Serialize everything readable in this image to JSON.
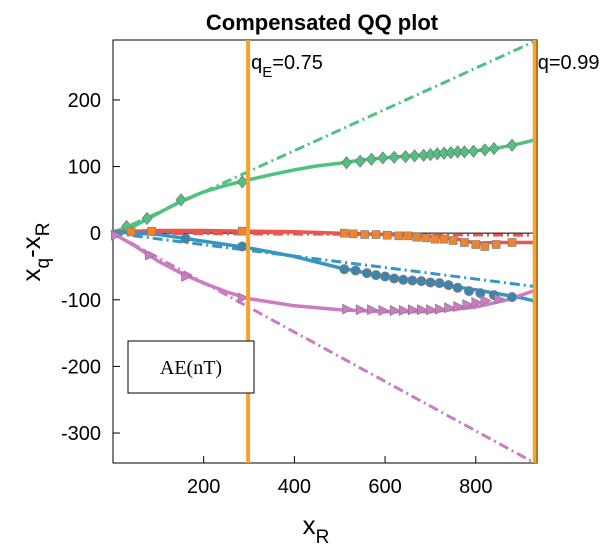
{
  "chart_data": {
    "type": "line",
    "title": "Compensated QQ plot",
    "xlabel": {
      "main": "x",
      "sub": "R"
    },
    "ylabel": {
      "a": "x",
      "a_sub": "q",
      "b": "-x",
      "b_sub": "R"
    },
    "xlim": [
      0,
      935
    ],
    "ylim": [
      -345,
      290
    ],
    "xticks": [
      200,
      400,
      600,
      800
    ],
    "yticks": [
      200,
      100,
      0,
      -100,
      -200,
      -300
    ],
    "grid": false,
    "legend_box": "AE(nT)",
    "vlines": [
      {
        "x": 298,
        "label": {
          "a": "q",
          "a_sub": "E",
          "b": "=0.75"
        }
      },
      {
        "x": 930,
        "label": {
          "a": "q=0.99",
          "a_sub": "",
          "b": ""
        }
      }
    ],
    "colors": {
      "green": "#4ec27f",
      "red": "#f0524e",
      "blue": "#3396c4",
      "purple": "#cc7bc4",
      "orange": "#f5a32c",
      "marker_blue": "#3b86b0",
      "marker_orange": "#f0842c"
    },
    "series": [
      {
        "color": "#4ec27f",
        "marker": "diamond",
        "marker_color": "#4ec27f",
        "curve": [
          [
            0,
            2
          ],
          [
            50,
            12
          ],
          [
            100,
            30
          ],
          [
            150,
            48
          ],
          [
            200,
            62
          ],
          [
            250,
            72
          ],
          [
            298,
            80
          ],
          [
            350,
            88
          ],
          [
            400,
            95
          ],
          [
            450,
            101
          ],
          [
            500,
            105
          ],
          [
            550,
            110
          ],
          [
            600,
            113
          ],
          [
            650,
            116
          ],
          [
            700,
            118
          ],
          [
            750,
            121
          ],
          [
            800,
            124
          ],
          [
            850,
            128
          ],
          [
            900,
            135
          ],
          [
            930,
            140
          ]
        ],
        "points": [
          [
            30,
            10
          ],
          [
            75,
            22
          ],
          [
            150,
            50
          ],
          [
            285,
            77
          ],
          [
            515,
            106
          ],
          [
            545,
            108
          ],
          [
            570,
            111
          ],
          [
            595,
            113
          ],
          [
            620,
            114
          ],
          [
            645,
            115
          ],
          [
            665,
            116
          ],
          [
            685,
            117
          ],
          [
            700,
            118
          ],
          [
            715,
            119
          ],
          [
            730,
            120
          ],
          [
            745,
            121
          ],
          [
            760,
            122
          ],
          [
            775,
            122
          ],
          [
            795,
            123
          ],
          [
            820,
            125
          ],
          [
            840,
            127
          ],
          [
            880,
            132
          ]
        ],
        "ref": [
          [
            0,
            0
          ],
          [
            930,
            288
          ]
        ]
      },
      {
        "color": "#f0524e",
        "marker": "square",
        "marker_color": "#f0842c",
        "curve": [
          [
            0,
            2
          ],
          [
            100,
            4
          ],
          [
            200,
            4
          ],
          [
            298,
            3
          ],
          [
            400,
            2
          ],
          [
            500,
            0
          ],
          [
            600,
            -2
          ],
          [
            700,
            -5
          ],
          [
            760,
            -9
          ],
          [
            800,
            -15
          ],
          [
            840,
            -14
          ],
          [
            930,
            -14
          ]
        ],
        "points": [
          [
            40,
            2
          ],
          [
            85,
            3
          ],
          [
            285,
            3
          ],
          [
            510,
            0
          ],
          [
            530,
            -1
          ],
          [
            555,
            -2
          ],
          [
            580,
            -2
          ],
          [
            605,
            -3
          ],
          [
            630,
            -4
          ],
          [
            650,
            -4
          ],
          [
            670,
            -6
          ],
          [
            690,
            -7
          ],
          [
            710,
            -9
          ],
          [
            730,
            -9
          ],
          [
            750,
            -11
          ],
          [
            775,
            -14
          ],
          [
            800,
            -17
          ],
          [
            820,
            -20
          ],
          [
            845,
            -17
          ],
          [
            880,
            -14
          ]
        ],
        "ref": [
          [
            0,
            0
          ],
          [
            930,
            -3
          ]
        ]
      },
      {
        "color": "#3396c4",
        "marker": "circle",
        "marker_color": "#3b86b0",
        "curve": [
          [
            0,
            2
          ],
          [
            100,
            -2
          ],
          [
            200,
            -12
          ],
          [
            298,
            -22
          ],
          [
            400,
            -35
          ],
          [
            500,
            -52
          ],
          [
            600,
            -65
          ],
          [
            700,
            -75
          ],
          [
            800,
            -85
          ],
          [
            900,
            -97
          ],
          [
            930,
            -102
          ]
        ],
        "points": [
          [
            160,
            -8
          ],
          [
            285,
            -20
          ],
          [
            510,
            -54
          ],
          [
            535,
            -56
          ],
          [
            560,
            -60
          ],
          [
            580,
            -63
          ],
          [
            600,
            -65
          ],
          [
            620,
            -68
          ],
          [
            640,
            -70
          ],
          [
            660,
            -71
          ],
          [
            680,
            -72
          ],
          [
            700,
            -74
          ],
          [
            720,
            -75
          ],
          [
            740,
            -78
          ],
          [
            760,
            -82
          ],
          [
            785,
            -87
          ],
          [
            810,
            -90
          ],
          [
            840,
            -93
          ],
          [
            880,
            -96
          ]
        ],
        "ref": [
          [
            0,
            0
          ],
          [
            930,
            -80
          ]
        ]
      },
      {
        "color": "#cc7bc4",
        "marker": "triangle-right",
        "marker_color": "#cc7bc4",
        "curve": [
          [
            0,
            0
          ],
          [
            50,
            -20
          ],
          [
            100,
            -42
          ],
          [
            150,
            -60
          ],
          [
            200,
            -75
          ],
          [
            250,
            -88
          ],
          [
            298,
            -98
          ],
          [
            400,
            -109
          ],
          [
            500,
            -115
          ],
          [
            600,
            -118
          ],
          [
            700,
            -118
          ],
          [
            800,
            -111
          ],
          [
            870,
            -100
          ],
          [
            930,
            -86
          ]
        ],
        "points": [
          [
            5,
            -3
          ],
          [
            80,
            -33
          ],
          [
            160,
            -65
          ],
          [
            285,
            -97
          ],
          [
            515,
            -114
          ],
          [
            545,
            -115
          ],
          [
            570,
            -115
          ],
          [
            595,
            -116
          ],
          [
            620,
            -116
          ],
          [
            640,
            -116
          ],
          [
            660,
            -115
          ],
          [
            680,
            -115
          ],
          [
            700,
            -115
          ],
          [
            720,
            -114
          ],
          [
            740,
            -112
          ],
          [
            760,
            -110
          ],
          [
            780,
            -107
          ],
          [
            800,
            -104
          ],
          [
            820,
            -101
          ],
          [
            850,
            -99
          ]
        ],
        "ref": [
          [
            0,
            0
          ],
          [
            930,
            -345
          ]
        ]
      }
    ]
  }
}
